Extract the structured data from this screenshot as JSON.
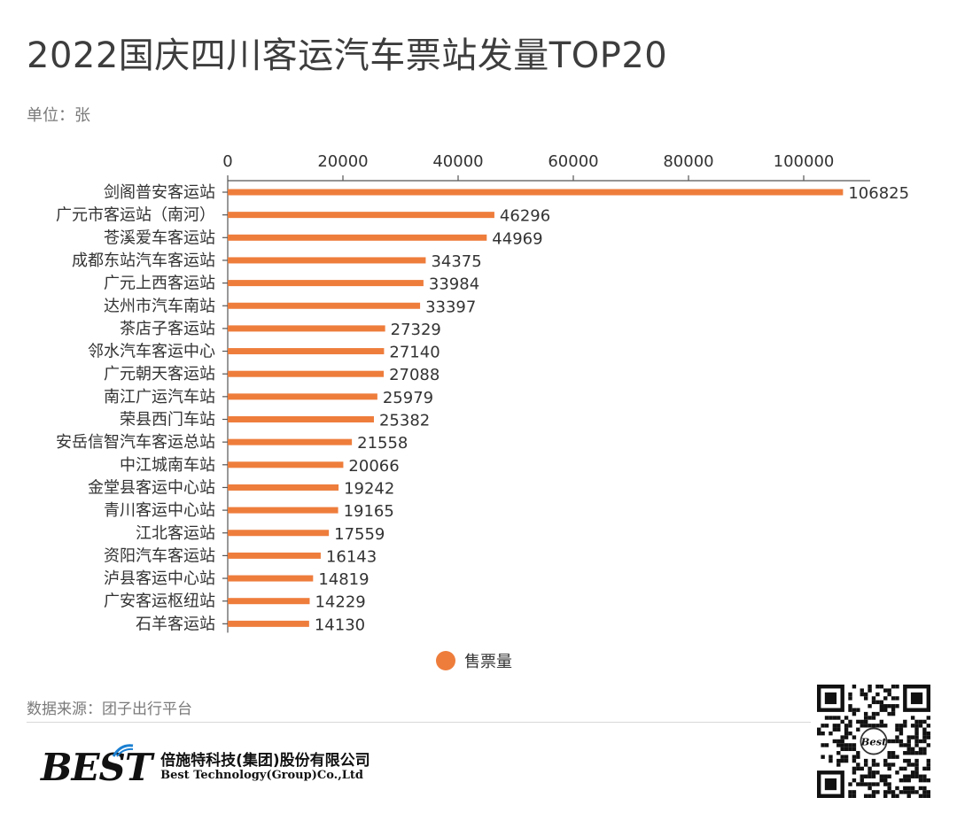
{
  "header": {
    "title": "2022国庆四川客运汽车票站发量TOP20",
    "unit": "单位：张"
  },
  "chart_data": {
    "type": "bar",
    "orientation": "horizontal",
    "categories": [
      "剑阁普安客运站",
      "广元市客运站（南河）",
      "苍溪爱车客运站",
      "成都东站汽车客运站",
      "广元上西客运站",
      "达州市汽车南站",
      "茶店子客运站",
      "邻水汽车客运中心",
      "广元朝天客运站",
      "南江广运汽车站",
      "荣县西门车站",
      "安岳信智汽车客运总站",
      "中江城南车站",
      "金堂县客运中心站",
      "青川客运中心站",
      "江北客运站",
      "资阳汽车客运站",
      "泸县客运中心站",
      "广安客运枢纽站",
      "石羊客运站"
    ],
    "series": [
      {
        "name": "售票量",
        "values": [
          106825,
          46296,
          44969,
          34375,
          33984,
          33397,
          27329,
          27140,
          27088,
          25979,
          25382,
          21558,
          20066,
          19242,
          19165,
          17559,
          16143,
          14819,
          14229,
          14130
        ]
      }
    ],
    "x_ticks": [
      "0",
      "20000",
      "40000",
      "60000",
      "80000",
      "100000"
    ],
    "xlim": [
      0,
      112000
    ],
    "axis_position": "top",
    "legend": "bottom-center",
    "grid": false,
    "color": "#ee7d3c"
  },
  "footer": {
    "source": "数据来源：团子出行平台",
    "logo_text": "BEST",
    "company_cn": "倍施特科技(集团)股份有限公司",
    "company_en": "Best Technology(Group)Co.,Ltd",
    "qr_center_text": "Best"
  }
}
